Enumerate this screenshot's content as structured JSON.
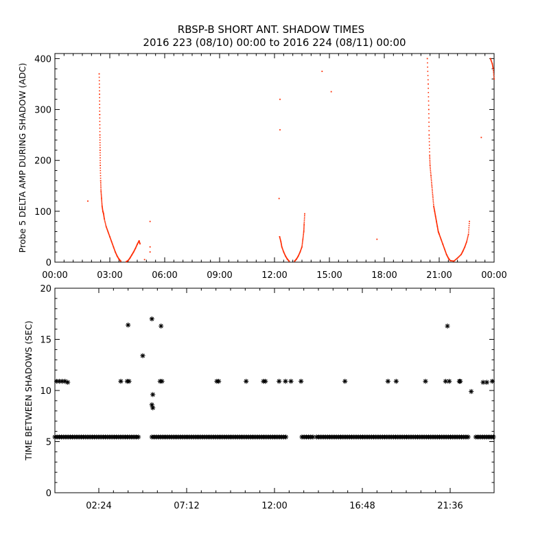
{
  "title": {
    "line1": "RBSP-B SHORT ANT. SHADOW TIMES",
    "line2": "2016 223 (08/10) 00:00 to 2016 224 (08/11) 00:00"
  },
  "chart_data": [
    {
      "type": "scatter",
      "ylabel": "Probe 5 DELTA AMP DURING SHADOW (ADC)",
      "xlabel": "",
      "x_units": "hours",
      "xlim": [
        0,
        24
      ],
      "ylim": [
        0,
        410
      ],
      "xtick_values": [
        0,
        3,
        6,
        9,
        12,
        15,
        18,
        21,
        24
      ],
      "xtick_labels": [
        "00:00",
        "03:00",
        "06:00",
        "09:00",
        "12:00",
        "15:00",
        "18:00",
        "21:00",
        "00:00"
      ],
      "ytick_values": [
        0,
        100,
        200,
        300,
        400
      ],
      "ytick_labels": [
        "0",
        "100",
        "200",
        "300",
        "400"
      ],
      "color": "#ff2a00",
      "grid": false,
      "series": [
        {
          "points": [
            [
              1.8,
              120
            ],
            [
              2.42,
              370
            ],
            [
              2.44,
              330
            ],
            [
              2.45,
              290
            ],
            [
              2.46,
              250
            ],
            [
              2.47,
              220
            ],
            [
              2.48,
              190
            ],
            [
              2.5,
              160
            ],
            [
              2.52,
              140
            ],
            [
              2.55,
              125
            ],
            [
              2.58,
              110
            ],
            [
              2.62,
              100
            ],
            [
              2.66,
              95
            ],
            [
              2.7,
              85
            ],
            [
              2.8,
              70
            ],
            [
              2.9,
              60
            ],
            [
              3.0,
              50
            ],
            [
              3.1,
              40
            ],
            [
              3.2,
              30
            ],
            [
              3.3,
              20
            ],
            [
              3.4,
              12
            ],
            [
              3.5,
              6
            ],
            [
              3.6,
              2
            ],
            [
              3.9,
              1
            ],
            [
              4.0,
              3
            ],
            [
              4.1,
              8
            ],
            [
              4.2,
              14
            ],
            [
              4.3,
              20
            ],
            [
              4.4,
              27
            ],
            [
              4.5,
              35
            ],
            [
              4.6,
              42
            ],
            [
              4.65,
              36
            ],
            [
              5.2,
              80
            ],
            [
              5.2,
              30
            ],
            [
              5.2,
              20
            ],
            [
              4.9,
              5
            ],
            [
              12.25,
              125
            ],
            [
              12.3,
              260
            ],
            [
              12.3,
              320
            ],
            [
              12.28,
              50
            ],
            [
              12.35,
              40
            ],
            [
              12.4,
              30
            ],
            [
              12.5,
              20
            ],
            [
              12.6,
              12
            ],
            [
              12.7,
              6
            ],
            [
              12.8,
              2
            ],
            [
              13.1,
              2
            ],
            [
              13.2,
              6
            ],
            [
              13.3,
              12
            ],
            [
              13.4,
              20
            ],
            [
              13.5,
              30
            ],
            [
              13.55,
              45
            ],
            [
              13.6,
              60
            ],
            [
              13.62,
              75
            ],
            [
              13.65,
              95
            ],
            [
              14.6,
              375
            ],
            [
              15.1,
              335
            ],
            [
              17.6,
              45
            ],
            [
              20.35,
              400
            ],
            [
              20.4,
              350
            ],
            [
              20.43,
              300
            ],
            [
              20.45,
              250
            ],
            [
              20.48,
              210
            ],
            [
              20.5,
              190
            ],
            [
              20.55,
              170
            ],
            [
              20.6,
              150
            ],
            [
              20.65,
              130
            ],
            [
              20.7,
              110
            ],
            [
              20.75,
              100
            ],
            [
              20.8,
              90
            ],
            [
              20.85,
              80
            ],
            [
              20.9,
              70
            ],
            [
              20.95,
              60
            ],
            [
              21.0,
              55
            ],
            [
              21.1,
              45
            ],
            [
              21.2,
              35
            ],
            [
              21.3,
              25
            ],
            [
              21.4,
              15
            ],
            [
              21.5,
              8
            ],
            [
              21.6,
              3
            ],
            [
              21.8,
              2
            ],
            [
              22.0,
              8
            ],
            [
              22.2,
              15
            ],
            [
              22.3,
              22
            ],
            [
              22.4,
              30
            ],
            [
              22.5,
              40
            ],
            [
              22.6,
              55
            ],
            [
              22.65,
              80
            ],
            [
              23.3,
              245
            ],
            [
              23.8,
              400
            ],
            [
              23.9,
              390
            ],
            [
              23.95,
              380
            ],
            [
              24.0,
              360
            ]
          ]
        }
      ]
    },
    {
      "type": "scatter",
      "ylabel": "TIME BETWEEN SHADOWS (SEC)",
      "xlabel": "",
      "x_units": "hours",
      "xlim": [
        0,
        24
      ],
      "ylim": [
        0,
        20
      ],
      "xtick_values": [
        2.4,
        7.2,
        12.0,
        16.8,
        21.6
      ],
      "xtick_labels": [
        "02:24",
        "07:12",
        "12:00",
        "16:48",
        "21:36"
      ],
      "ytick_values": [
        0,
        5,
        10,
        15,
        20
      ],
      "ytick_labels": [
        "0",
        "5",
        "10",
        "15",
        "20"
      ],
      "marker": "asterisk",
      "color": "#000000",
      "grid": false,
      "series": [
        {
          "baseline_value": 5.45,
          "baseline_segments": [
            [
              0,
              4.6
            ],
            [
              5.3,
              12.7
            ],
            [
              13.5,
              14.1
            ],
            [
              14.3,
              22.6
            ],
            [
              23.0,
              24.0
            ]
          ],
          "points": [
            [
              0.1,
              10.9
            ],
            [
              0.25,
              10.9
            ],
            [
              0.4,
              10.9
            ],
            [
              0.55,
              10.9
            ],
            [
              0.7,
              10.8
            ],
            [
              3.6,
              10.9
            ],
            [
              3.95,
              10.9
            ],
            [
              4.0,
              16.4
            ],
            [
              4.05,
              10.9
            ],
            [
              4.8,
              13.4
            ],
            [
              5.3,
              17.0
            ],
            [
              5.35,
              9.6
            ],
            [
              5.3,
              8.6
            ],
            [
              5.35,
              8.3
            ],
            [
              5.75,
              10.9
            ],
            [
              5.8,
              16.3
            ],
            [
              5.85,
              10.9
            ],
            [
              8.85,
              10.9
            ],
            [
              8.95,
              10.9
            ],
            [
              10.45,
              10.9
            ],
            [
              11.4,
              10.9
            ],
            [
              11.5,
              10.9
            ],
            [
              12.25,
              10.9
            ],
            [
              12.6,
              10.9
            ],
            [
              12.9,
              10.9
            ],
            [
              13.45,
              10.9
            ],
            [
              15.85,
              10.9
            ],
            [
              18.2,
              10.9
            ],
            [
              18.65,
              10.9
            ],
            [
              20.25,
              10.9
            ],
            [
              21.35,
              10.9
            ],
            [
              21.45,
              16.3
            ],
            [
              21.55,
              10.9
            ],
            [
              22.1,
              10.9
            ],
            [
              22.15,
              10.9
            ],
            [
              22.75,
              9.9
            ],
            [
              23.4,
              10.8
            ],
            [
              23.6,
              10.8
            ],
            [
              23.9,
              10.9
            ]
          ]
        }
      ]
    }
  ]
}
